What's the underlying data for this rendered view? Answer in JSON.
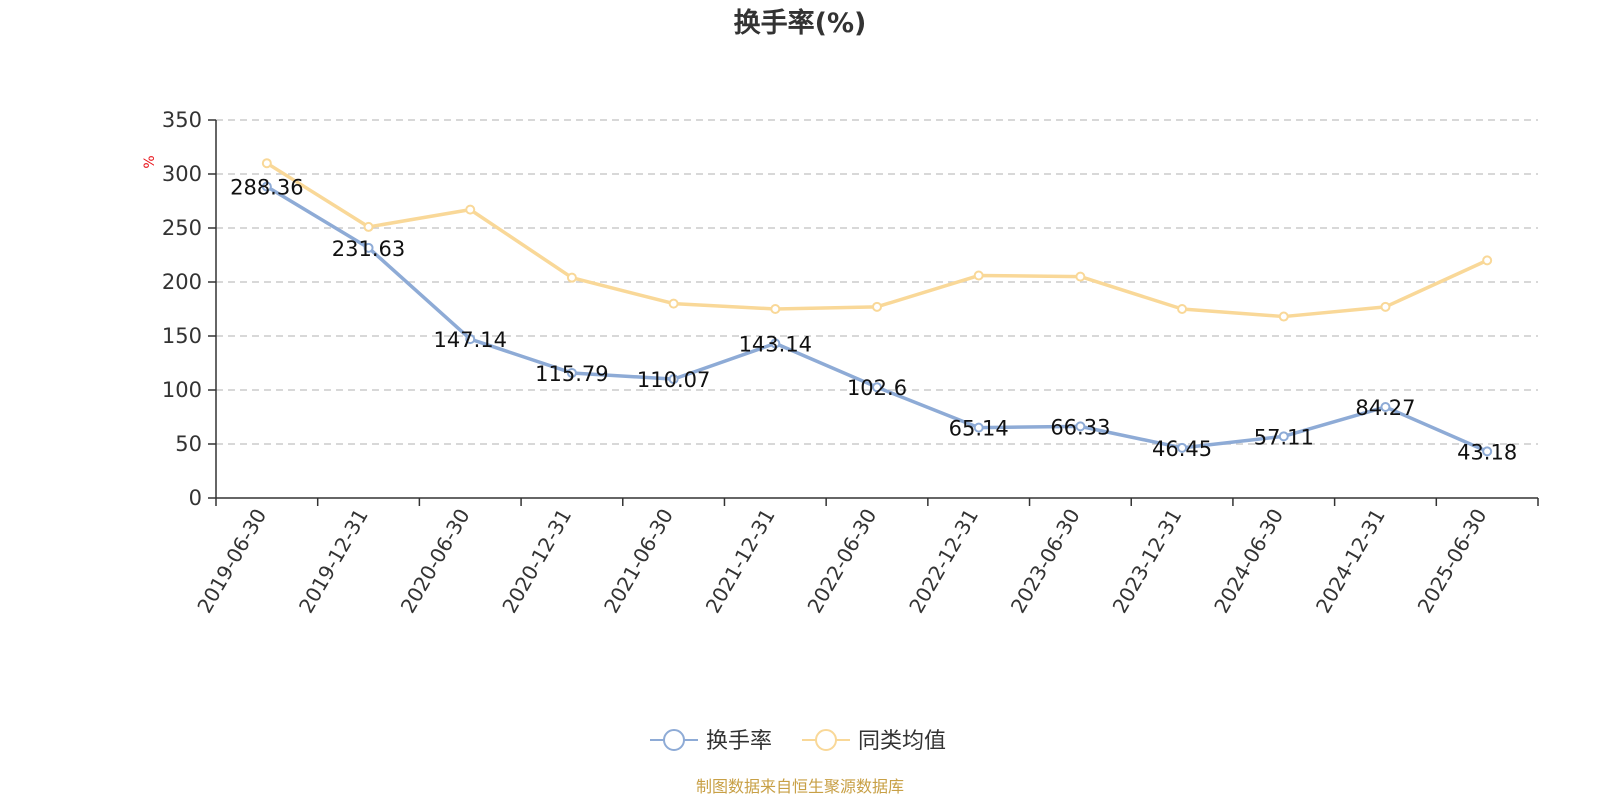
{
  "title": "换手率(%)",
  "source": "制图数据来自恒生聚源数据库",
  "colors": {
    "axis": "#333333",
    "grid": "#cccccc",
    "unit": "#e8141b",
    "source": "#c8a046"
  },
  "chart_data": {
    "type": "line",
    "title": "换手率(%)",
    "ylabel": "%",
    "xlabel": "",
    "ylim": [
      0,
      350
    ],
    "yticks": [
      0,
      50,
      100,
      150,
      200,
      250,
      300,
      350
    ],
    "grid": true,
    "legend_position": "bottom-center",
    "categories": [
      "2019-06-30",
      "2019-12-31",
      "2020-06-30",
      "2020-12-31",
      "2021-06-30",
      "2021-12-31",
      "2022-06-30",
      "2022-12-31",
      "2023-06-30",
      "2023-12-31",
      "2024-06-30",
      "2024-12-31",
      "2025-06-30"
    ],
    "series": [
      {
        "name": "换手率",
        "color": "#8eabd6",
        "show_labels": true,
        "values": [
          288.36,
          231.63,
          147.14,
          115.79,
          110.07,
          143.14,
          102.6,
          65.14,
          66.33,
          46.45,
          57.11,
          84.27,
          43.18
        ]
      },
      {
        "name": "同类均值",
        "color": "#f9d898",
        "show_labels": false,
        "values": [
          310,
          251,
          267,
          204,
          180,
          175,
          177,
          206,
          205,
          175,
          168,
          177,
          220
        ]
      }
    ]
  }
}
